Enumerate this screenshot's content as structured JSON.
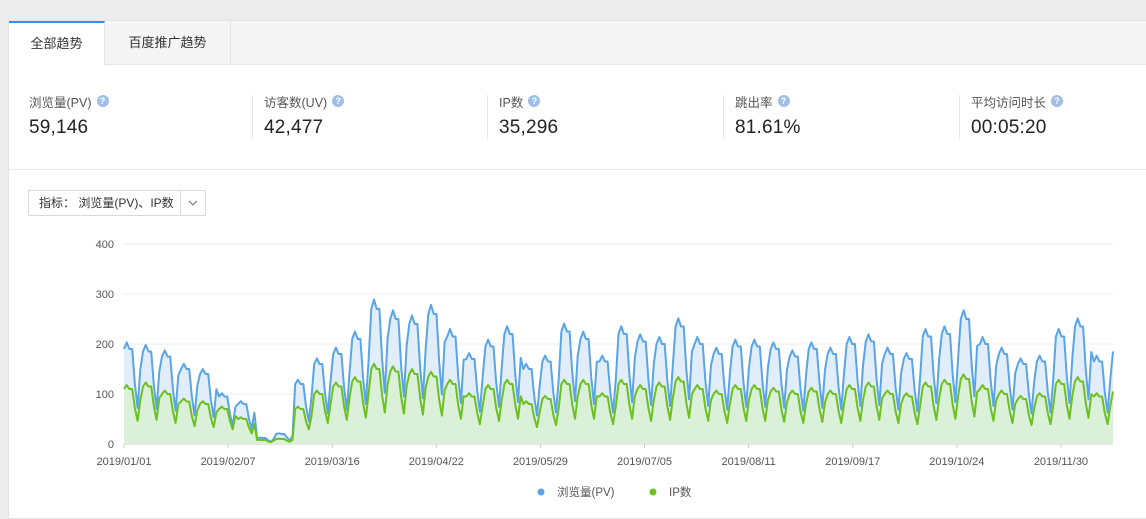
{
  "tabs": [
    {
      "label": "全部趋势",
      "active": true
    },
    {
      "label": "百度推广趋势",
      "active": false
    }
  ],
  "metrics": [
    {
      "label": "浏览量(PV)",
      "value": "59,146"
    },
    {
      "label": "访客数(UV)",
      "value": "42,477"
    },
    {
      "label": "IP数",
      "value": "35,296"
    },
    {
      "label": "跳出率",
      "value": "81.61%"
    },
    {
      "label": "平均访问时长",
      "value": "00:05:20"
    }
  ],
  "help_icon": "question-circle-icon",
  "selector": {
    "label": "指标： 浏览量(PV)、IP数",
    "icon": "chevron-down-icon"
  },
  "chart_data": {
    "type": "area",
    "x_tick_labels": [
      "2019/01/01",
      "2019/02/07",
      "2019/03/16",
      "2019/04/22",
      "2019/05/29",
      "2019/07/05",
      "2019/08/11",
      "2019/09/17",
      "2019/10/24",
      "2019/11/30"
    ],
    "y_ticks": [
      0,
      100,
      200,
      300,
      400
    ],
    "ylim": [
      0,
      400
    ],
    "x_start": "2019-01-01",
    "legend_position": "bottom-center",
    "grid": true,
    "series": [
      {
        "name": "浏览量(PV)",
        "color": "#5aa4e8",
        "fill": "#dcebf8",
        "weekly_values": [
          190,
          185,
          175,
          150,
          140,
          95,
          80,
          12,
          20,
          120,
          160,
          180,
          210,
          270,
          250,
          240,
          260,
          215,
          170,
          195,
          220,
          150,
          165,
          225,
          210,
          165,
          220,
          205,
          200,
          235,
          200,
          180,
          195,
          195,
          190,
          175,
          190,
          180,
          200,
          205,
          180,
          170,
          215,
          220,
          250,
          200,
          180,
          160,
          165,
          215,
          235,
          165,
          185,
          250,
          215,
          260,
          240,
          200,
          205,
          210,
          235,
          225,
          215,
          165,
          195,
          175,
          170
        ]
      },
      {
        "name": "IP数",
        "color": "#6cc01f",
        "fill": "#d9efd4",
        "weekly_values": [
          110,
          115,
          100,
          85,
          80,
          70,
          50,
          8,
          10,
          70,
          100,
          115,
          125,
          150,
          145,
          140,
          135,
          120,
          95,
          110,
          120,
          80,
          90,
          120,
          120,
          95,
          120,
          110,
          115,
          125,
          110,
          100,
          110,
          110,
          105,
          100,
          105,
          100,
          110,
          115,
          100,
          95,
          115,
          120,
          130,
          110,
          100,
          90,
          95,
          120,
          125,
          95,
          105,
          130,
          120,
          135,
          130,
          110,
          115,
          115,
          125,
          120,
          115,
          95,
          110,
          100,
          95
        ]
      }
    ]
  }
}
